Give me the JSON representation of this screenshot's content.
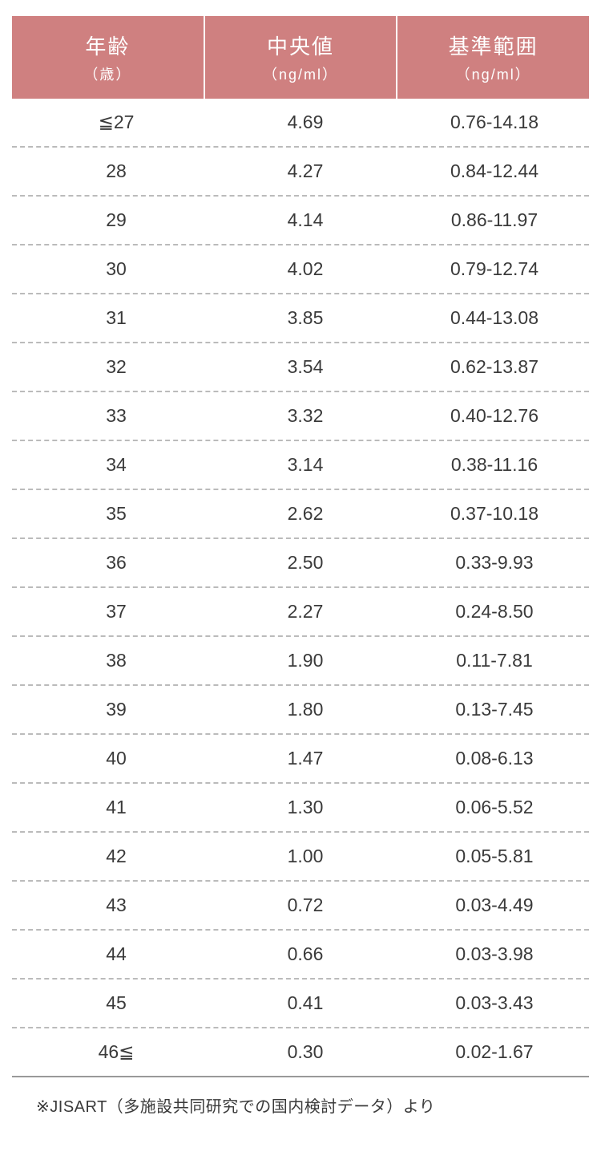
{
  "table": {
    "header_bg_color": "#cf8080",
    "header_text_color": "#ffffff",
    "row_border_color": "#bbbbbb",
    "last_row_border_color": "#999999",
    "text_color": "#3a3a3a",
    "header_title_fontsize": 26,
    "header_unit_fontsize": 18,
    "data_cell_fontsize": 23,
    "columns": [
      {
        "title": "年齢",
        "unit": "（歳）"
      },
      {
        "title": "中央値",
        "unit": "（ng/ml）"
      },
      {
        "title": "基準範囲",
        "unit": "（ng/ml）"
      }
    ],
    "rows": [
      {
        "age": "≦27",
        "median": "4.69",
        "range": "0.76-14.18"
      },
      {
        "age": "28",
        "median": "4.27",
        "range": "0.84-12.44"
      },
      {
        "age": "29",
        "median": "4.14",
        "range": "0.86-11.97"
      },
      {
        "age": "30",
        "median": "4.02",
        "range": "0.79-12.74"
      },
      {
        "age": "31",
        "median": "3.85",
        "range": "0.44-13.08"
      },
      {
        "age": "32",
        "median": "3.54",
        "range": "0.62-13.87"
      },
      {
        "age": "33",
        "median": "3.32",
        "range": "0.40-12.76"
      },
      {
        "age": "34",
        "median": "3.14",
        "range": "0.38-11.16"
      },
      {
        "age": "35",
        "median": "2.62",
        "range": "0.37-10.18"
      },
      {
        "age": "36",
        "median": "2.50",
        "range": "0.33-9.93"
      },
      {
        "age": "37",
        "median": "2.27",
        "range": "0.24-8.50"
      },
      {
        "age": "38",
        "median": "1.90",
        "range": "0.11-7.81"
      },
      {
        "age": "39",
        "median": "1.80",
        "range": "0.13-7.45"
      },
      {
        "age": "40",
        "median": "1.47",
        "range": "0.08-6.13"
      },
      {
        "age": "41",
        "median": "1.30",
        "range": "0.06-5.52"
      },
      {
        "age": "42",
        "median": "1.00",
        "range": "0.05-5.81"
      },
      {
        "age": "43",
        "median": "0.72",
        "range": "0.03-4.49"
      },
      {
        "age": "44",
        "median": "0.66",
        "range": "0.03-3.98"
      },
      {
        "age": "45",
        "median": "0.41",
        "range": "0.03-3.43"
      },
      {
        "age": "46≦",
        "median": "0.30",
        "range": "0.02-1.67"
      }
    ]
  },
  "footnote": "※JISART（多施設共同研究での国内検討データ）より"
}
